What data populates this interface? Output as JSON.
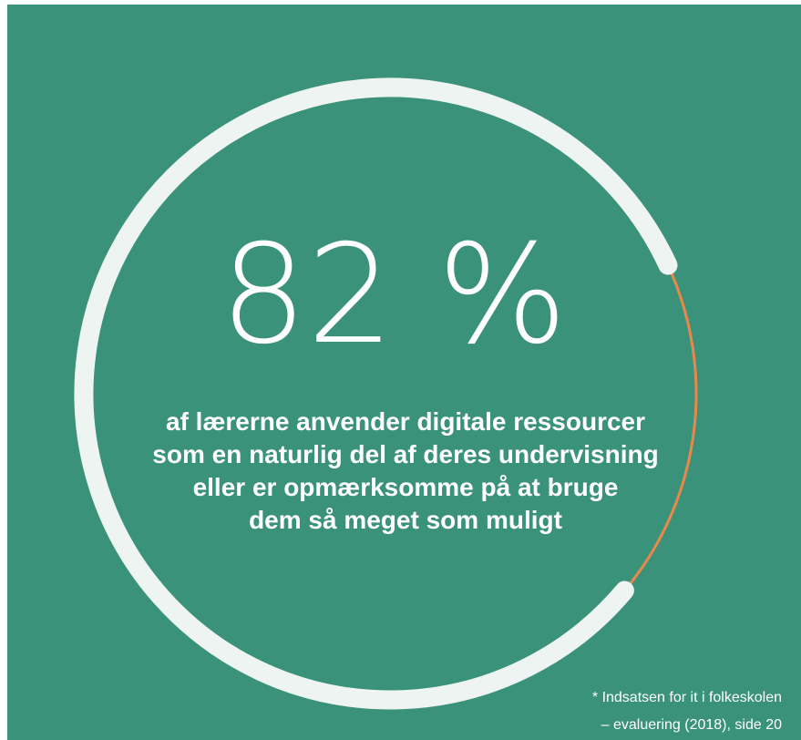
{
  "chart_data": {
    "type": "gauge",
    "values": [
      82
    ],
    "value_labels": [
      "82 %"
    ],
    "ylim": [
      0,
      100
    ],
    "subtitle": [
      "af lærerne anvender digitale ressourcer",
      "som en naturlig del af deres undervisning",
      "eller er opmærksomme på at bruge",
      "dem så meget som muligt"
    ],
    "footnote": [
      "* Indsatsen for it i folkeskolen",
      "– evaluering (2018), side 20"
    ],
    "background_color": "#3a927a",
    "color": "#eef4f1",
    "remainder_color": "#e8894a"
  }
}
